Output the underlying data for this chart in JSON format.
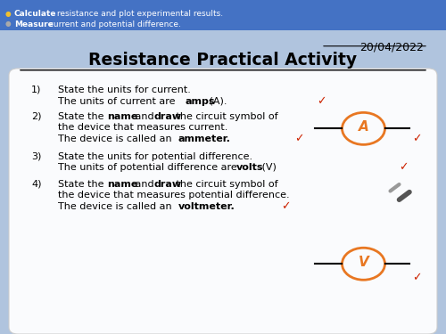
{
  "bg_color": "#b0c4de",
  "header_color": "#4472c4",
  "header_text1_bold": "Calculate",
  "header_text1_rest": " resistance and plot experimental results.",
  "header_text2_bold": "Measure",
  "header_text2_rest": " current and potential difference.",
  "date": "20/04/2022",
  "title": "Resistance Practical Activity",
  "orange_color": "#e87722",
  "red_color": "#cc2200"
}
